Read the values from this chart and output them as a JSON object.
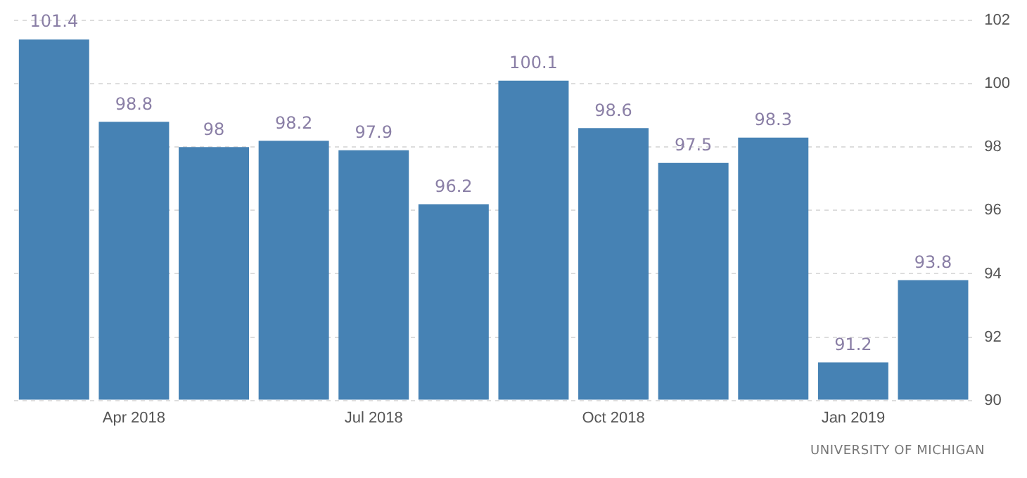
{
  "chart_data": {
    "type": "bar",
    "categories": [
      null,
      "Apr 2018",
      null,
      null,
      "Jul 2018",
      null,
      null,
      "Oct 2018",
      null,
      null,
      "Jan 2019",
      null
    ],
    "values": [
      101.4,
      98.8,
      98,
      98.2,
      97.9,
      96.2,
      100.1,
      98.6,
      97.5,
      98.3,
      91.2,
      93.8
    ],
    "color": "#4682b4",
    "ylim": [
      90,
      102
    ],
    "yticks": [
      90,
      92,
      94,
      96,
      98,
      100,
      102
    ],
    "grid": "y",
    "data_labels": true,
    "annotations": [
      "UNIVERSITY OF MICHIGAN"
    ]
  }
}
